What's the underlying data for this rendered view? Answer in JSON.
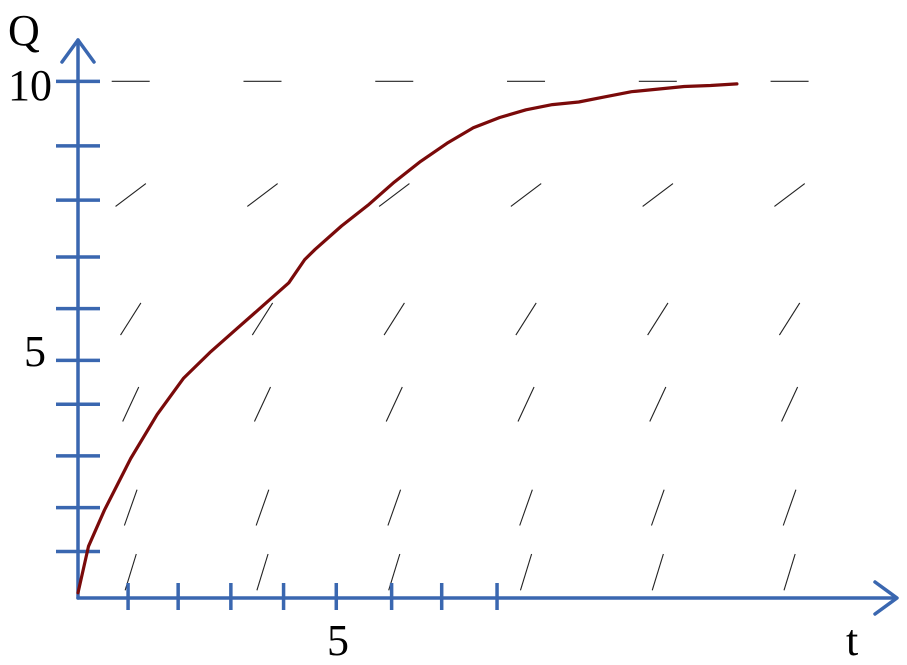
{
  "chart_data": {
    "type": "line",
    "description_kind": "slope-field",
    "xlabel": "t",
    "ylabel": "Q",
    "x_tick_label": "5",
    "y_tick_labels": [
      "5",
      "10"
    ],
    "xlim": [
      0,
      15.5
    ],
    "ylim": [
      0,
      10.8
    ],
    "x_ticks": [
      0.95,
      1.9,
      2.9,
      3.9,
      4.9,
      5.95,
      6.9,
      7.95
    ],
    "y_ticks": [
      0.9,
      1.75,
      2.75,
      3.75,
      4.6,
      5.6,
      6.6,
      7.7,
      8.75,
      10
    ],
    "field_rows_q": [
      0.5,
      1.75,
      3.75,
      5.4,
      7.8,
      10
    ],
    "field_cols_t": [
      1,
      3.5,
      6,
      8.5,
      11,
      13.5
    ],
    "solution": {
      "t": [
        0,
        0.2,
        0.5,
        1,
        1.5,
        2,
        2.5,
        3,
        3.5,
        4,
        4.3,
        4.5,
        5,
        5.5,
        6,
        6.5,
        7,
        7.5,
        8,
        8.5,
        9,
        9.5,
        10,
        10.5,
        11,
        11.5,
        12,
        12.5
      ],
      "q": [
        0.1,
        1,
        1.7,
        2.7,
        3.55,
        4.25,
        4.75,
        5.2,
        5.65,
        6.1,
        6.55,
        6.75,
        7.2,
        7.6,
        8.05,
        8.45,
        8.8,
        9.1,
        9.3,
        9.45,
        9.55,
        9.6,
        9.7,
        9.8,
        9.85,
        9.9,
        9.92,
        9.95
      ]
    }
  }
}
